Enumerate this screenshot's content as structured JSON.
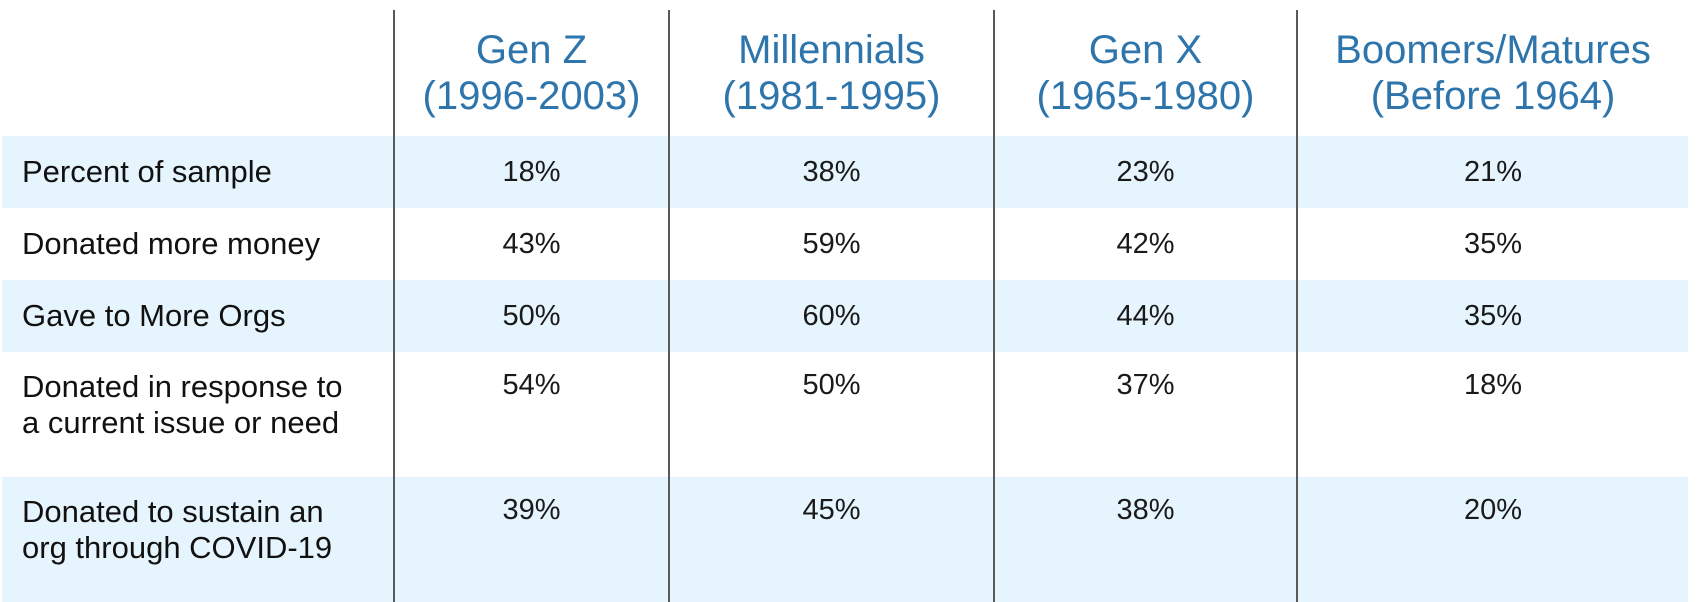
{
  "chart_data": {
    "type": "table",
    "columns": [
      {
        "name": "Gen Z",
        "range": "(1996-2003)"
      },
      {
        "name": "Millennials",
        "range": "(1981-1995)"
      },
      {
        "name": "Gen X",
        "range": "(1965-1980)"
      },
      {
        "name": "Boomers/Matures",
        "range": "(Before 1964)"
      }
    ],
    "rows": [
      {
        "label_lines": [
          "Percent of sample"
        ],
        "values": [
          "18%",
          "38%",
          "23%",
          "21%"
        ]
      },
      {
        "label_lines": [
          "Donated more money"
        ],
        "values": [
          "43%",
          "59%",
          "42%",
          "35%"
        ]
      },
      {
        "label_lines": [
          "Gave to More Orgs"
        ],
        "values": [
          "50%",
          "60%",
          "44%",
          "35%"
        ]
      },
      {
        "label_lines": [
          "Donated in response to",
          "a current issue or need"
        ],
        "values": [
          "54%",
          "50%",
          "37%",
          "18%"
        ]
      },
      {
        "label_lines": [
          "Donated to sustain an",
          "org through COVID-19"
        ],
        "values": [
          "39%",
          "45%",
          "38%",
          "20%"
        ]
      }
    ]
  },
  "colors": {
    "header_text": "#2e75ac",
    "row_shade": "#e6f5fd",
    "divider": "#595959"
  }
}
